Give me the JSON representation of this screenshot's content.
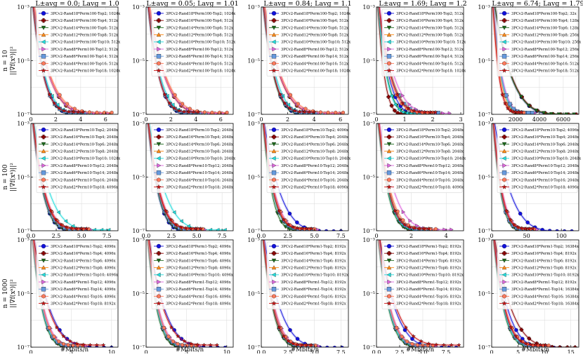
{
  "chart_data": {
    "type": "line",
    "yscale": "log",
    "ylim": [
      1e-07,
      0.001
    ],
    "y_tick_labels": [
      "10⁻³",
      "10⁻⁵",
      "10⁻⁷"
    ],
    "row_labels": [
      {
        "n": "n = 10",
        "ylabel": "||∇f(xᵏ)||²"
      },
      {
        "n": "n = 100",
        "ylabel": "||∇f(xᵏ)||²"
      },
      {
        "n": "n = 1000",
        "ylabel": "||∇f(xᵏ)||²"
      }
    ],
    "xlabel": "#Mbits/n",
    "column_titles": [
      "L±avg = 0.0; Lavg = 1.0",
      "L±avg = 0.05; Lavg = 1.01",
      "L±avg = 0.84; Lavg = 1.1",
      "L±avg = 1.69; Lavg = 1.2",
      "L±avg = 6.74; Lavg = 1.79"
    ],
    "series_style": [
      {
        "marker": "circle",
        "color": "#1111dd"
      },
      {
        "marker": "plus",
        "color": "#8b0000"
      },
      {
        "marker": "tri-down",
        "color": "#1e6b1e"
      },
      {
        "marker": "tri-up",
        "color": "#ff8c1a"
      },
      {
        "marker": "tri-left",
        "color": "#22dddd"
      },
      {
        "marker": "tri-right",
        "color": "#dd66dd"
      },
      {
        "marker": "square",
        "color": "#6699dd"
      },
      {
        "marker": "hexagon",
        "color": "#ff7a5c"
      },
      {
        "marker": "star",
        "color": "#cc1111"
      }
    ],
    "panels": [
      {
        "xlim": [
          0,
          7
        ],
        "xticks": [
          "0",
          "2",
          "4",
          "6"
        ],
        "xtick_vals": [
          0,
          2,
          4,
          6
        ],
        "legend": [
          "3PCv2-Rand18*Perm100-Top2; 1024x",
          "3PCv2-Rand16*Perm100-Top4; 512x",
          "3PCv2-Rand14*Perm100-Top6; 512x",
          "3PCv2-Rand12*Perm100-Top8; 512x",
          "3PCv2-Rand10*Perm100-Top10; 512x",
          "3PCv2-Rand8*Perm100-Top12; 512x",
          "3PCv2-Rand6*Perm100-Top14; 512x",
          "3PCv2-Rand4*Perm100-Top16; 512x",
          "3PCv2-Rand2*Perm100-Top18; 1024x"
        ],
        "series_end_x": [
          4.6,
          6.3,
          4.4,
          6.4,
          4.8,
          6.2,
          4.3,
          6.5,
          4.2
        ]
      },
      {
        "xlim": [
          0,
          7
        ],
        "xticks": [
          "0",
          "2",
          "4",
          "6"
        ],
        "xtick_vals": [
          0,
          2,
          4,
          6
        ],
        "legend": [
          "3PCv2-Rand18*Perm100-Top2; 1024x",
          "3PCv2-Rand16*Perm100-Top4; 512x",
          "3PCv2-Rand14*Perm100-Top6; 512x",
          "3PCv2-Rand12*Perm100-Top8; 512x",
          "3PCv2-Rand10*Perm100-Top10; 512x",
          "3PCv2-Rand8*Perm100-Top12; 512x",
          "3PCv2-Rand6*Perm100-Top14; 512x",
          "3PCv2-Rand4*Perm100-Top16; 512x",
          "3PCv2-Rand2*Perm100-Top18; 1024x"
        ],
        "series_end_x": [
          4.5,
          6.3,
          4.4,
          6.4,
          4.8,
          6.2,
          4.3,
          6.5,
          4.2
        ]
      },
      {
        "xlim": [
          0,
          6.6
        ],
        "xticks": [
          "0",
          "2",
          "4",
          "6"
        ],
        "xtick_vals": [
          0,
          2,
          4,
          6
        ],
        "legend": [
          "3PCv2-Rand18*Perm100-Top2; 1024x",
          "3PCv2-Rand16*Perm100-Top4; 512x",
          "3PCv2-Rand14*Perm100-Top6; 512x",
          "3PCv2-Rand12*Perm100-Top8; 512x",
          "3PCv2-Rand10*Perm100-Top10; 512x",
          "3PCv2-Rand8*Perm100-Top12; 512x",
          "3PCv2-Rand6*Perm100-Top14; 512x",
          "3PCv2-Rand4*Perm100-Top16; 512x",
          "3PCv2-Rand2*Perm100-Top18; 1024x"
        ],
        "series_end_x": [
          4.2,
          6.0,
          4.0,
          6.1,
          4.6,
          6.0,
          4.1,
          6.2,
          4.0
        ]
      },
      {
        "xlim": [
          0,
          3.1
        ],
        "xticks": [
          "0",
          "1",
          "2",
          "3"
        ],
        "xtick_vals": [
          0,
          1,
          2,
          3
        ],
        "legend": [
          "3PCv2-Rand18*Perm100-Top2; 512x",
          "3PCv2-Rand16*Perm100-Top4; 512x",
          "3PCv2-Rand14*Perm100-Top6; 512x",
          "3PCv2-Rand12*Perm100-Top8; 512x",
          "3PCv2-Rand10*Perm100-Top10; 512x",
          "3PCv2-Rand8*Perm100-Top12; 512x",
          "3PCv2-Rand6*Perm100-Top14; 512x",
          "3PCv2-Rand4*Perm100-Top16; 512x",
          "3PCv2-Rand2*Perm100-Top18; 1024x"
        ],
        "series_end_x": [
          1.9,
          1.2,
          1.6,
          2.3,
          1.5,
          2.6,
          2.2,
          2.0,
          2.1
        ]
      },
      {
        "xlim": [
          0,
          7300
        ],
        "xticks": [
          "0",
          "2000",
          "4000",
          "6000"
        ],
        "xtick_vals": [
          0,
          2000,
          4000,
          6000
        ],
        "legend": [
          "3PCv2-Rand18*Perm100-Top2; 32x",
          "3PCv2-Rand16*Perm100-Top4; 128x",
          "3PCv2-Rand14*Perm100-Top6; 128x",
          "3PCv2-Rand12*Perm100-Top8; 256x",
          "3PCv2-Rand10*Perm100-Top10; 256x",
          "3PCv2-Rand8*Perm100-Top12; 256x",
          "3PCv2-Rand6*Perm100-Top14; 256x",
          "3PCv2-Rand4*Perm100-Top16; 512x",
          "3PCv2-Rand2*Perm100-Top18; 512x"
        ],
        "series_end_x": [
          7000,
          7100,
          6900,
          3100,
          3300,
          3600,
          3400,
          2700,
          2500
        ]
      },
      {
        "xlim": [
          0,
          8.6
        ],
        "xticks": [
          "0.0",
          "2.5",
          "5.0",
          "7.5"
        ],
        "xtick_vals": [
          0,
          2.5,
          5,
          7.5
        ],
        "legend": [
          "3PCv2-Rand18*Perm10-Top2; 2048x",
          "3PCv2-Rand16*Perm10-Top4; 2048x",
          "3PCv2-Rand14*Perm10-Top6; 2048x",
          "3PCv2-Rand12*Perm10-Top8; 2048x",
          "3PCv2-Rand10*Perm10-Top10; 1024x",
          "3PCv2-Rand8*Perm10-Top12; 2048x",
          "3PCv2-Rand6*Perm10-Top14; 2048x",
          "3PCv2-Rand4*Perm10-Top16; 2048x",
          "3PCv2-Rand2*Perm10-Top18; 4096x"
        ],
        "series_end_x": [
          5.2,
          5.6,
          5.1,
          5.8,
          7.7,
          5.9,
          5.3,
          5.7,
          5.5
        ]
      },
      {
        "xlim": [
          0,
          8.6
        ],
        "xticks": [
          "0.0",
          "2.5",
          "5.0",
          "7.5"
        ],
        "xtick_vals": [
          0,
          2.5,
          5,
          7.5
        ],
        "legend": [
          "3PCv2-Rand18*Perm10-Top2; 2048x",
          "3PCv2-Rand16*Perm10-Top4; 2048x",
          "3PCv2-Rand14*Perm10-Top6; 2048x",
          "3PCv2-Rand12*Perm10-Top8; 2048x",
          "3PCv2-Rand10*Perm10-Top10; 2048x",
          "3PCv2-Rand8*Perm10-Top12; 2048x",
          "3PCv2-Rand6*Perm10-Top14; 2048x",
          "3PCv2-Rand4*Perm10-Top16; 2048x",
          "3PCv2-Rand2*Perm10-Top18; 2048x"
        ],
        "series_end_x": [
          5.0,
          5.5,
          5.0,
          5.6,
          7.8,
          5.8,
          5.2,
          5.6,
          5.4
        ]
      },
      {
        "xlim": [
          0,
          8.2
        ],
        "xticks": [
          "0.0",
          "2.5",
          "5.0",
          "7.5"
        ],
        "xtick_vals": [
          0,
          2.5,
          5,
          7.5
        ],
        "legend": [
          "3PCv2-Rand18*Perm10-Top2; 4096x",
          "3PCv2-Rand16*Perm10-Top4; 2048x",
          "3PCv2-Rand14*Perm10-Top6; 2048x",
          "3PCv2-Rand12*Perm10-Top8; 2048x",
          "3PCv2-Rand10*Perm10-Top10; 2048x",
          "3PCv2-Rand8*Perm10-Top12; 2048x",
          "3PCv2-Rand6*Perm10-Top14; 2048x",
          "3PCv2-Rand4*Perm10-Top16; 2048x",
          "3PCv2-Rand2*Perm10-Top18; 4096x"
        ],
        "series_end_x": [
          7.5,
          4.9,
          4.2,
          5.1,
          4.6,
          5.3,
          4.8,
          5.0,
          4.7
        ]
      },
      {
        "xlim": [
          0,
          5.0
        ],
        "xticks": [
          "0",
          "2",
          "4"
        ],
        "xtick_vals": [
          0,
          2,
          4
        ],
        "legend": [
          "3PCv2-Rand18*Perm10-Top2; 2048x",
          "3PCv2-Rand16*Perm10-Top4; 2048x",
          "3PCv2-Rand14*Perm10-Top6; 2048x",
          "3PCv2-Rand12*Perm10-Top8; 2048x",
          "3PCv2-Rand10*Perm10-Top10; 2048x",
          "3PCv2-Rand8*Perm10-Top12; 2048x",
          "3PCv2-Rand6*Perm10-Top14; 2048x",
          "3PCv2-Rand4*Perm10-Top16; 2048x",
          "3PCv2-Rand2*Perm10-Top18; 4096x"
        ],
        "series_end_x": [
          3.2,
          3.0,
          2.8,
          3.3,
          2.9,
          4.3,
          3.1,
          3.4,
          3.0
        ]
      },
      {
        "xlim": [
          0,
          125
        ],
        "xticks": [
          "0",
          "50",
          "100"
        ],
        "xtick_vals": [
          0,
          50,
          100
        ],
        "legend": [
          "3PCv2-Rand18*Perm10-Top2; 4096x",
          "3PCv2-Rand16*Perm10-Top4; 2048x",
          "3PCv2-Rand14*Perm10-Top6; 2048x",
          "3PCv2-Rand12*Perm10-Top8; 2048x",
          "3PCv2-Rand10*Perm10-Top10; 2048x",
          "3PCv2-Rand8*Perm10-Top12; 2048x",
          "3PCv2-Rand6*Perm10-Top14; 2048x",
          "3PCv2-Rand4*Perm10-Top16; 2048x",
          "3PCv2-Rand2*Perm10-Top18; 4096x"
        ],
        "series_end_x": [
          115,
          60,
          55,
          62,
          58,
          65,
          57,
          61,
          59
        ]
      },
      {
        "xlim": [
          0,
          10.8
        ],
        "xticks": [
          "0",
          "5",
          "10"
        ],
        "xtick_vals": [
          0,
          5,
          10
        ],
        "legend": [
          "3PCv2-Rand18*Perm1-Top2; 4096x",
          "3PCv2-Rand16*Perm1-Top4; 4096x",
          "3PCv2-Rand14*Perm1-Top6; 4096x",
          "3PCv2-Rand12*Perm1-Top8; 4096x",
          "3PCv2-Rand10*Perm1-Top10; 4096x",
          "3PCv2-Rand8*Perm1-Top12; 4096x",
          "3PCv2-Rand6*Perm1-Top14; 4096x",
          "3PCv2-Rand4*Perm1-Top16; 4096x",
          "3PCv2-Rand2*Perm1-Top18; 8192x"
        ],
        "series_end_x": [
          10.0,
          6.2,
          5.8,
          6.5,
          6.0,
          6.8,
          6.1,
          6.4,
          9.0
        ]
      },
      {
        "xlim": [
          0,
          10.8
        ],
        "xticks": [
          "0",
          "5",
          "10"
        ],
        "xtick_vals": [
          0,
          5,
          10
        ],
        "legend": [
          "3PCv2-Rand18*Perm1-Top2; 4096x",
          "3PCv2-Rand16*Perm1-Top4; 4096x",
          "3PCv2-Rand14*Perm1-Top6; 4096x",
          "3PCv2-Rand12*Perm1-Top8; 4096x",
          "3PCv2-Rand10*Perm1-Top10; 4096x",
          "3PCv2-Rand8*Perm1-Top12; 4096x",
          "3PCv2-Rand6*Perm1-Top14; 4096x",
          "3PCv2-Rand4*Perm1-Top16; 4096x",
          "3PCv2-Rand2*Perm1-Top18; 4096x"
        ],
        "series_end_x": [
          9.8,
          6.0,
          5.6,
          6.3,
          5.9,
          6.6,
          6.0,
          6.2,
          8.8
        ]
      },
      {
        "xlim": [
          0,
          8.2
        ],
        "xticks": [
          "0.0",
          "2.5",
          "5.0",
          "7.5"
        ],
        "xtick_vals": [
          0,
          2.5,
          5,
          7.5
        ],
        "legend": [
          "3PCv2-Rand18*Perm1-Top2; 8192x",
          "3PCv2-Rand16*Perm1-Top4; 8192x",
          "3PCv2-Rand14*Perm1-Top6; 8192x",
          "3PCv2-Rand12*Perm1-Top8; 8192x",
          "3PCv2-Rand10*Perm1-Top10; 8192x",
          "3PCv2-Rand8*Perm1-Top12; 8192x",
          "3PCv2-Rand6*Perm1-Top14; 8192x",
          "3PCv2-Rand4*Perm1-Top16; 8192x",
          "3PCv2-Rand2*Perm1-Top18; 8192x"
        ],
        "series_end_x": [
          7.6,
          5.0,
          4.6,
          5.2,
          4.8,
          5.4,
          4.9,
          5.1,
          4.7
        ]
      },
      {
        "xlim": [
          0,
          9.4
        ],
        "xticks": [
          "0.0",
          "2.5",
          "5.0",
          "7.5"
        ],
        "xtick_vals": [
          0,
          2.5,
          5,
          7.5
        ],
        "legend": [
          "3PCv2-Rand18*Perm1-Top2; 8192x",
          "3PCv2-Rand16*Perm1-Top4; 8192x",
          "3PCv2-Rand14*Perm1-Top6; 8192x",
          "3PCv2-Rand12*Perm1-Top8; 8192x",
          "3PCv2-Rand10*Perm1-Top10; 8192x",
          "3PCv2-Rand8*Perm1-Top12; 8192x",
          "3PCv2-Rand6*Perm1-Top14; 8192x",
          "3PCv2-Rand4*Perm1-Top16; 8192x",
          "3PCv2-Rand2*Perm1-Top18; 8192x"
        ],
        "series_end_x": [
          8.6,
          6.0,
          5.6,
          6.2,
          5.8,
          6.4,
          5.9,
          6.1,
          8.9
        ]
      },
      {
        "xlim": [
          0,
          16.5
        ],
        "xticks": [
          "0",
          "5",
          "10",
          "15"
        ],
        "xtick_vals": [
          0,
          5,
          10,
          15
        ],
        "legend": [
          "3PCv2-Rand18*Perm1-Top2; 16384x",
          "3PCv2-Rand16*Perm1-Top4; 8192x",
          "3PCv2-Rand14*Perm1-Top6; 8192x",
          "3PCv2-Rand12*Perm1-Top8; 8192x",
          "3PCv2-Rand10*Perm1-Top10; 8192x",
          "3PCv2-Rand8*Perm1-Top12; 8192x",
          "3PCv2-Rand6*Perm1-Top14; 16384x",
          "3PCv2-Rand4*Perm1-Top16; 16384x",
          "3PCv2-Rand2*Perm1-Top18; 16384x"
        ],
        "series_end_x": [
          13.0,
          15.8,
          9.5,
          10.5,
          9.8,
          11.0,
          10.0,
          10.8,
          10.2
        ]
      }
    ]
  }
}
